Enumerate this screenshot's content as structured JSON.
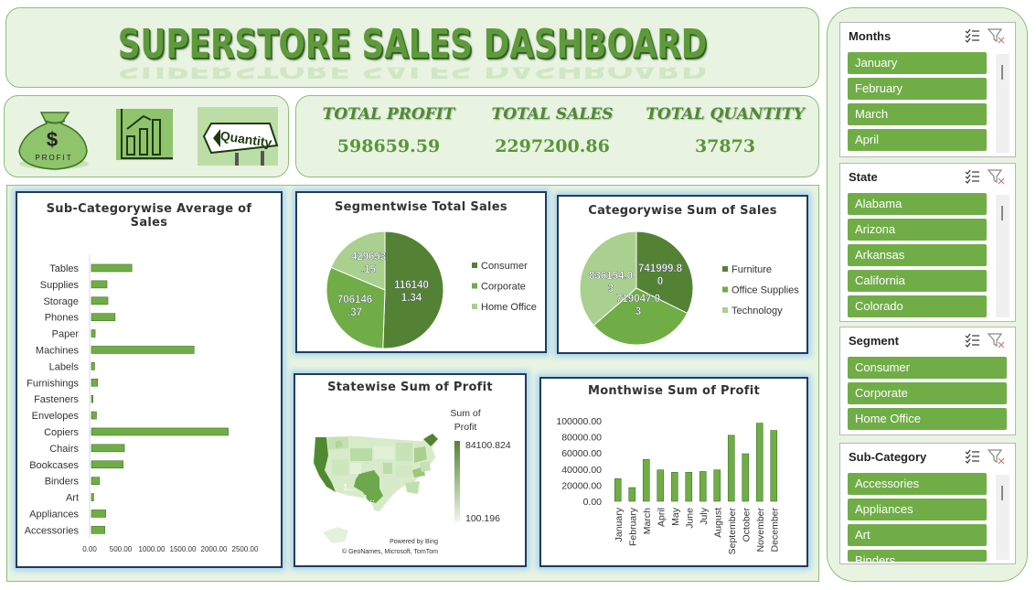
{
  "header": {
    "title": "SUPERSTORE SALES DASHBOARD"
  },
  "icons": [
    {
      "name": "money-bag-icon",
      "caption": "PROFIT"
    },
    {
      "name": "bar-chart-icon"
    },
    {
      "name": "quantity-sign-icon",
      "caption": "Quantity"
    }
  ],
  "kpis": [
    {
      "label": "TOTAL PROFIT",
      "value": "598659.59"
    },
    {
      "label": "TOTAL SALES",
      "value": "2297200.86"
    },
    {
      "label": "TOTAL QUANTITY",
      "value": "37873"
    }
  ],
  "colors": {
    "accent": "#70ad47",
    "dark_green": "#4e8a30",
    "light_green": "#a9d08e",
    "panel_bg": "#e8f3e2"
  },
  "chart_data": [
    {
      "id": "subcategory",
      "type": "bar",
      "orientation": "horizontal",
      "title": "Sub-Categorywise Average of Sales",
      "categories": [
        "Tables",
        "Supplies",
        "Storage",
        "Phones",
        "Paper",
        "Machines",
        "Labels",
        "Furnishings",
        "Fasteners",
        "Envelopes",
        "Copiers",
        "Chairs",
        "Bookcases",
        "Binders",
        "Art",
        "Appliances",
        "Accessories"
      ],
      "values": [
        650,
        250,
        265,
        380,
        60,
        1650,
        50,
        100,
        25,
        80,
        2200,
        530,
        510,
        130,
        35,
        230,
        215
      ],
      "xticks": [
        "0.00",
        "500.00",
        "1000.00",
        "1500.00",
        "2000.00",
        "2500.00"
      ],
      "xlim": [
        0,
        2500
      ],
      "color": "#70ad47"
    },
    {
      "id": "segment",
      "type": "pie",
      "title": "Segmentwise Total Sales",
      "labels": [
        "Consumer",
        "Corporate",
        "Home Office"
      ],
      "values": [
        1161401.34,
        706146.37,
        429653.15
      ],
      "data_labels": [
        [
          "116140",
          "1.34"
        ],
        [
          "706146",
          ".37"
        ],
        [
          "429653",
          ".15"
        ]
      ],
      "colors": [
        "#548235",
        "#70ad47",
        "#a9d08e"
      ],
      "legend": "right"
    },
    {
      "id": "category",
      "type": "pie",
      "title": "Categorywise Sum of Sales",
      "labels": [
        "Furniture",
        "Office Supplies",
        "Technology"
      ],
      "values": [
        741999.8,
        719047.03,
        836154.03
      ],
      "data_labels": [
        [
          "741999.8",
          "0"
        ],
        [
          "719047.0",
          "3"
        ],
        [
          "836154.0",
          "3"
        ]
      ],
      "colors": [
        "#548235",
        "#70ad47",
        "#a9d08e"
      ],
      "legend": "right"
    },
    {
      "id": "statemap",
      "type": "heatmap",
      "title": "Statewise Sum of Profit",
      "legend_title": [
        "Sum of",
        "Profit"
      ],
      "legend_max": "84100.824",
      "legend_min": "100.196",
      "callouts": [
        "1...",
        "4..."
      ],
      "credit_line1": "Powered by Bing",
      "credit_line2": "© GeoNames, Microsoft, TomTom"
    },
    {
      "id": "month",
      "type": "bar",
      "title": "Monthwise Sum of Profit",
      "categories": [
        "January",
        "February",
        "March",
        "April",
        "May",
        "June",
        "July",
        "August",
        "September",
        "October",
        "November",
        "December"
      ],
      "values": [
        28000,
        17000,
        52000,
        39000,
        36000,
        36000,
        37000,
        39000,
        82000,
        59000,
        97000,
        88000
      ],
      "yticks": [
        "0.00",
        "20000.00",
        "40000.00",
        "60000.00",
        "80000.00",
        "100000.00"
      ],
      "ylim": [
        0,
        100000
      ],
      "color": "#70ad47"
    }
  ],
  "slicers": [
    {
      "title": "Months",
      "items": [
        "January",
        "February",
        "March",
        "April"
      ]
    },
    {
      "title": "State",
      "items": [
        "Alabama",
        "Arizona",
        "Arkansas",
        "California",
        "Colorado"
      ]
    },
    {
      "title": "Segment",
      "items": [
        "Consumer",
        "Corporate",
        "Home Office"
      ]
    },
    {
      "title": "Sub-Category",
      "items": [
        "Accessories",
        "Appliances",
        "Art",
        "Binders"
      ]
    }
  ]
}
